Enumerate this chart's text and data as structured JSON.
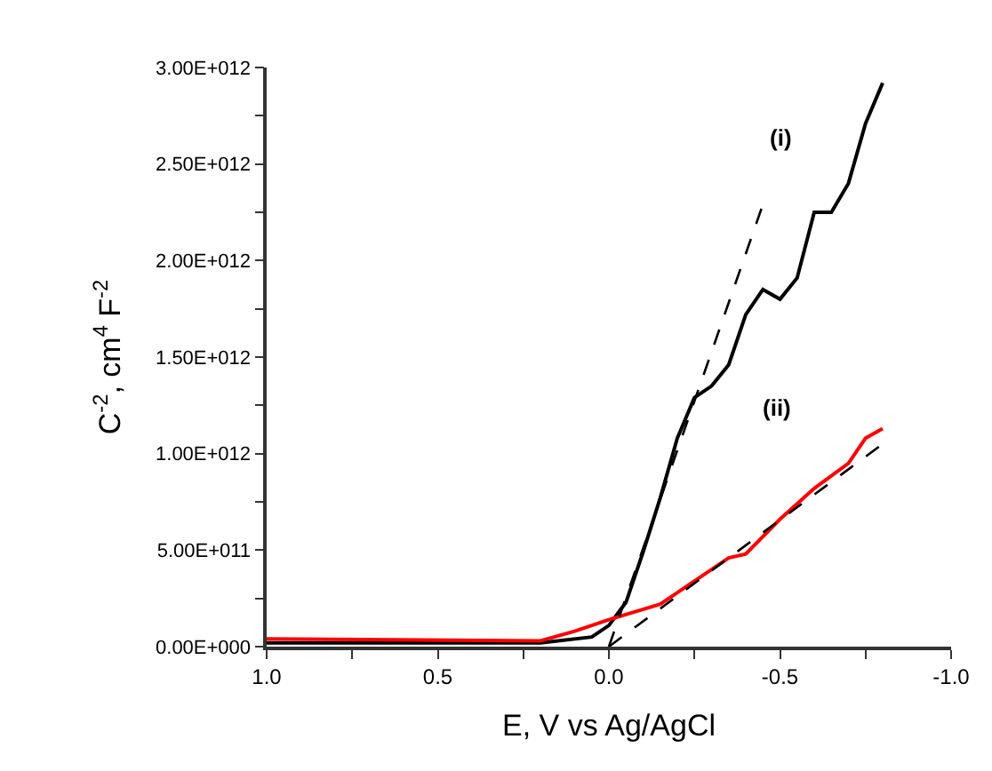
{
  "chart_data": {
    "type": "line",
    "xlabel": "E, V vs Ag/AgCl",
    "ylabel": "C$^{-2}$, cm$^{4}$ F$^{-2}$",
    "xlim": [
      1.0,
      -1.0
    ],
    "xticks": [
      {
        "value": 1.0,
        "label": "1.0"
      },
      {
        "value": 0.75,
        "label": null
      },
      {
        "value": 0.5,
        "label": "0.5"
      },
      {
        "value": 0.25,
        "label": null
      },
      {
        "value": 0.0,
        "label": "0.0"
      },
      {
        "value": -0.25,
        "label": null
      },
      {
        "value": -0.5,
        "label": "-0.5"
      },
      {
        "value": -0.75,
        "label": null
      },
      {
        "value": -1.0,
        "label": "-1.0"
      }
    ],
    "ylim": [
      0,
      3000000000000.0
    ],
    "yticks": [
      {
        "value": 0,
        "label": "0.00E+000"
      },
      {
        "value": 250000000000.0,
        "label": null
      },
      {
        "value": 500000000000.0,
        "label": "5.00E+011"
      },
      {
        "value": 750000000000.0,
        "label": null
      },
      {
        "value": 1000000000000.0,
        "label": "1.00E+012"
      },
      {
        "value": 1250000000000.0,
        "label": null
      },
      {
        "value": 1500000000000.0,
        "label": "1.50E+012"
      },
      {
        "value": 1750000000000.0,
        "label": null
      },
      {
        "value": 2000000000000.0,
        "label": "2.00E+012"
      },
      {
        "value": 2250000000000.0,
        "label": null
      },
      {
        "value": 2500000000000.0,
        "label": "2.50E+012"
      },
      {
        "value": 2750000000000.0,
        "label": null
      },
      {
        "value": 3000000000000.0,
        "label": "3.00E+012"
      }
    ],
    "marker": "none",
    "series": [
      {
        "color": "#000000",
        "line_style": "solid",
        "x": [
          1.0,
          0.53,
          0.2,
          0.05,
          0.0,
          -0.05,
          -0.1,
          -0.15,
          -0.2,
          -0.25,
          -0.3,
          -0.35,
          -0.4,
          -0.45,
          -0.5,
          -0.55,
          -0.6,
          -0.65,
          -0.7,
          -0.75,
          -0.8
        ],
        "values": [
          20000000000.0,
          20000000000.0,
          20000000000.0,
          50000000000.0,
          110000000000.0,
          230000000000.0,
          490000000000.0,
          770000000000.0,
          1080000000000.0,
          1290000000000.0,
          1350000000000.0,
          1460000000000.0,
          1720000000000.0,
          1850000000000.0,
          1800000000000.0,
          1910000000000.0,
          2250000000000.0,
          2250000000000.0,
          2400000000000.0,
          2710000000000.0,
          2920000000000.0
        ]
      },
      {
        "color": "#ff0000",
        "line_style": "solid",
        "x": [
          1.0,
          0.2,
          0.1,
          0.0,
          -0.15,
          -0.25,
          -0.35,
          -0.4,
          -0.5,
          -0.6,
          -0.7,
          -0.75,
          -0.8
        ],
        "values": [
          40000000000.0,
          30000000000.0,
          80000000000.0,
          140000000000.0,
          220000000000.0,
          340000000000.0,
          460000000000.0,
          480000000000.0,
          660000000000.0,
          820000000000.0,
          950000000000.0,
          1080000000000.0,
          1130000000000.0
        ]
      },
      {
        "color": "#000000",
        "line_style": "dashed",
        "x": [
          0.0,
          -0.45
        ],
        "values": [
          0,
          2290000000000.0
        ]
      },
      {
        "color": "#000000",
        "line_style": "dashed",
        "x": [
          0.0,
          -0.8
        ],
        "values": [
          0,
          1050000000000.0
        ]
      }
    ],
    "annotations": [
      "(i)",
      "(ii)"
    ]
  }
}
